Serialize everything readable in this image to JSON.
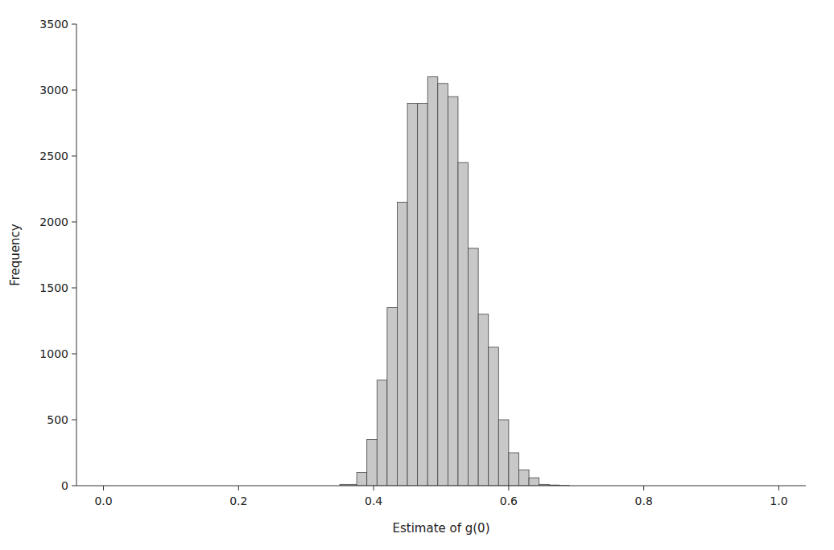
{
  "chart_data": {
    "type": "histogram",
    "xlabel": "Estimate of g(0)",
    "ylabel": "Frequency",
    "bins": [
      0.35,
      0.375,
      0.39,
      0.405,
      0.42,
      0.435,
      0.45,
      0.465,
      0.48,
      0.495,
      0.51,
      0.525,
      0.54,
      0.555,
      0.57,
      0.585,
      0.6,
      0.615,
      0.63,
      0.645,
      0.66,
      0.675,
      0.69
    ],
    "values": [
      10,
      100,
      350,
      800,
      1350,
      2150,
      2900,
      2900,
      3100,
      3050,
      2950,
      2450,
      1800,
      1300,
      1050,
      500,
      250,
      120,
      60,
      10,
      5,
      2
    ],
    "color": "#c8c8c8",
    "xlim": [
      -0.04,
      1.04
    ],
    "ylim": [
      0,
      3500
    ],
    "xticks": [
      {
        "value": 0.0,
        "label": "0.0"
      },
      0.2,
      0.4,
      0.6,
      0.8,
      {
        "value": 1.0,
        "label": "1.0"
      }
    ],
    "yticks": [
      0,
      500,
      1000,
      1500,
      2000,
      2500,
      3000,
      3500
    ],
    "grid": false
  }
}
